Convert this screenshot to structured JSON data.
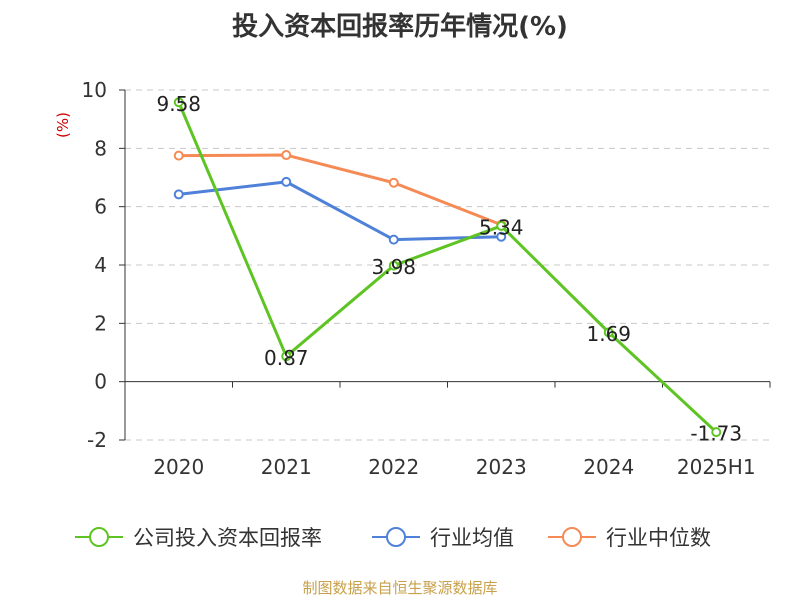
{
  "chart_data": {
    "type": "line",
    "title": "投入资本回报率历年情况(%)",
    "ylabel": "(%)",
    "xlabel": "",
    "categories": [
      "2020",
      "2021",
      "2022",
      "2023",
      "2024",
      "2025H1"
    ],
    "ylim": [
      -2,
      10
    ],
    "yticks": [
      -2,
      0,
      2,
      4,
      6,
      8,
      10
    ],
    "grid": true,
    "legend_position": "bottom",
    "series": [
      {
        "name": "公司投入资本回报率",
        "color": "#5ec423",
        "values": [
          9.58,
          0.87,
          3.98,
          5.34,
          1.69,
          -1.73
        ],
        "labels": [
          "9.58",
          "0.87",
          "3.98",
          "5.34",
          "1.69",
          "-1.73"
        ]
      },
      {
        "name": "行业均值",
        "color": "#4f81d9",
        "values": [
          6.42,
          6.85,
          4.87,
          4.97,
          null,
          null
        ]
      },
      {
        "name": "行业中位数",
        "color": "#f58a55",
        "values": [
          7.75,
          7.77,
          6.82,
          5.38,
          null,
          null
        ]
      }
    ],
    "source": "制图数据来自恒生聚源数据库"
  }
}
